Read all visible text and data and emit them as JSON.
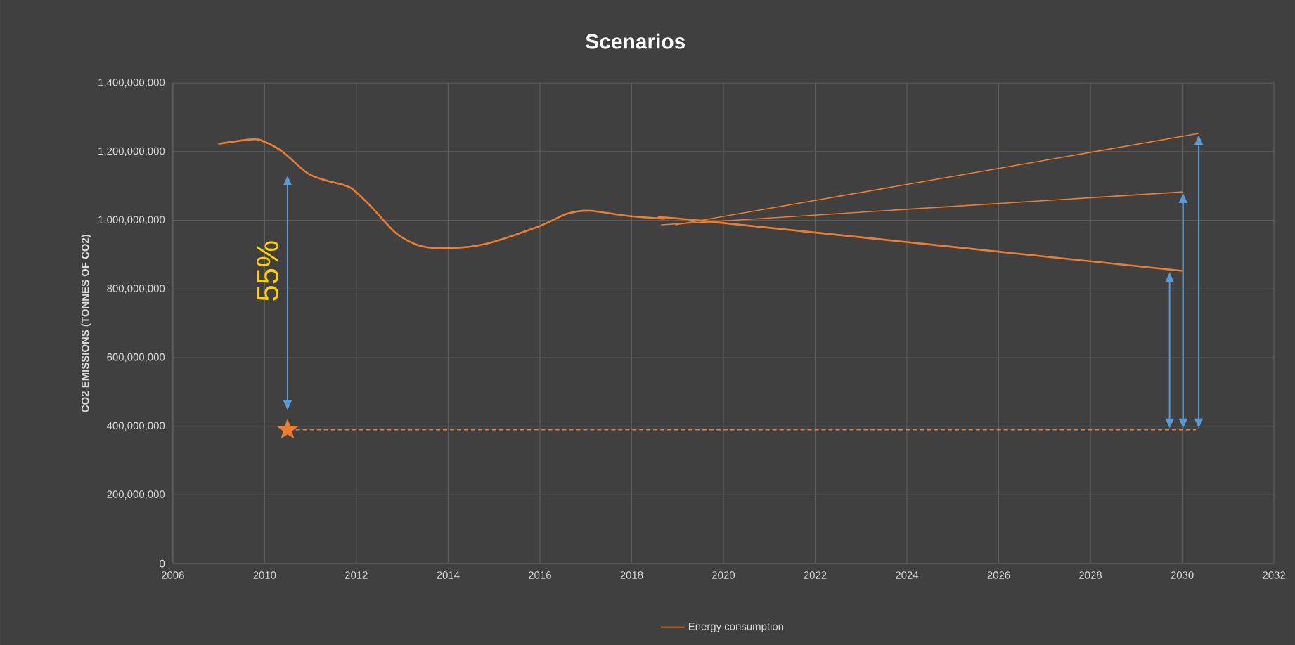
{
  "chart_data": {
    "type": "line",
    "title": "Scenarios",
    "ylabel": "CO2 EMISSIONS (TONNES OF CO2)",
    "xlim": [
      2008,
      2032
    ],
    "xticks": [
      2008,
      2010,
      2012,
      2014,
      2016,
      2018,
      2020,
      2022,
      2024,
      2026,
      2028,
      2030,
      2032
    ],
    "ylim": [
      0,
      1400000000
    ],
    "yticks": [
      0,
      {
        "value": 200000000,
        "label": "200,000,000"
      },
      {
        "value": 400000000,
        "label": "400,000,000"
      },
      {
        "value": 600000000,
        "label": "600,000,000"
      },
      {
        "value": 800000000,
        "label": "800,000,000"
      },
      {
        "value": 1000000000,
        "label": "1,000,000,000"
      },
      {
        "value": 1200000000,
        "label": "1,200,000,000"
      },
      {
        "value": 1400000000,
        "label": "1,400,000,000"
      }
    ],
    "grid": true,
    "legend": "bottom",
    "annotations": [
      "55%"
    ],
    "series": [
      {
        "name": "Energy consumption",
        "color": "#ed7d31",
        "x": [
          2008.99,
          2009.73,
          2010.0,
          2010.39,
          2010.93,
          2011.32,
          2011.86,
          2012.33,
          2012.87,
          2013.41,
          2014.03,
          2014.81,
          2015.97,
          2016.59,
          2017.09,
          2017.91,
          2018.68,
          2019.51,
          2030.0
        ],
        "values": [
          1223000000,
          1236000000,
          1229000000,
          1200000000,
          1138000000,
          1117000000,
          1096000000,
          1039000000,
          962000000,
          925000000,
          919000000,
          931000000,
          982000000,
          1019000000,
          1028000000,
          1013000000,
          1005000000,
          999000000,
          853000000
        ]
      },
      {
        "color": "#ed7d31",
        "x": [
          2018.64,
          2030.02
        ],
        "values": [
          987000000,
          1083000000
        ]
      },
      {
        "color": "#ed7d31",
        "x": [
          2018.95,
          2030.36
        ],
        "values": [
          987000000,
          1253000000
        ]
      },
      {
        "color": "#ed7d31",
        "line_style": "dashed",
        "x": [
          2010.68,
          2030.3
        ],
        "values": [
          390000000,
          390000000
        ]
      },
      {
        "type": "scatter",
        "color": "#ed7d31",
        "marker": "star",
        "x": [
          2010.5
        ],
        "values": [
          390000000
        ]
      }
    ]
  }
}
